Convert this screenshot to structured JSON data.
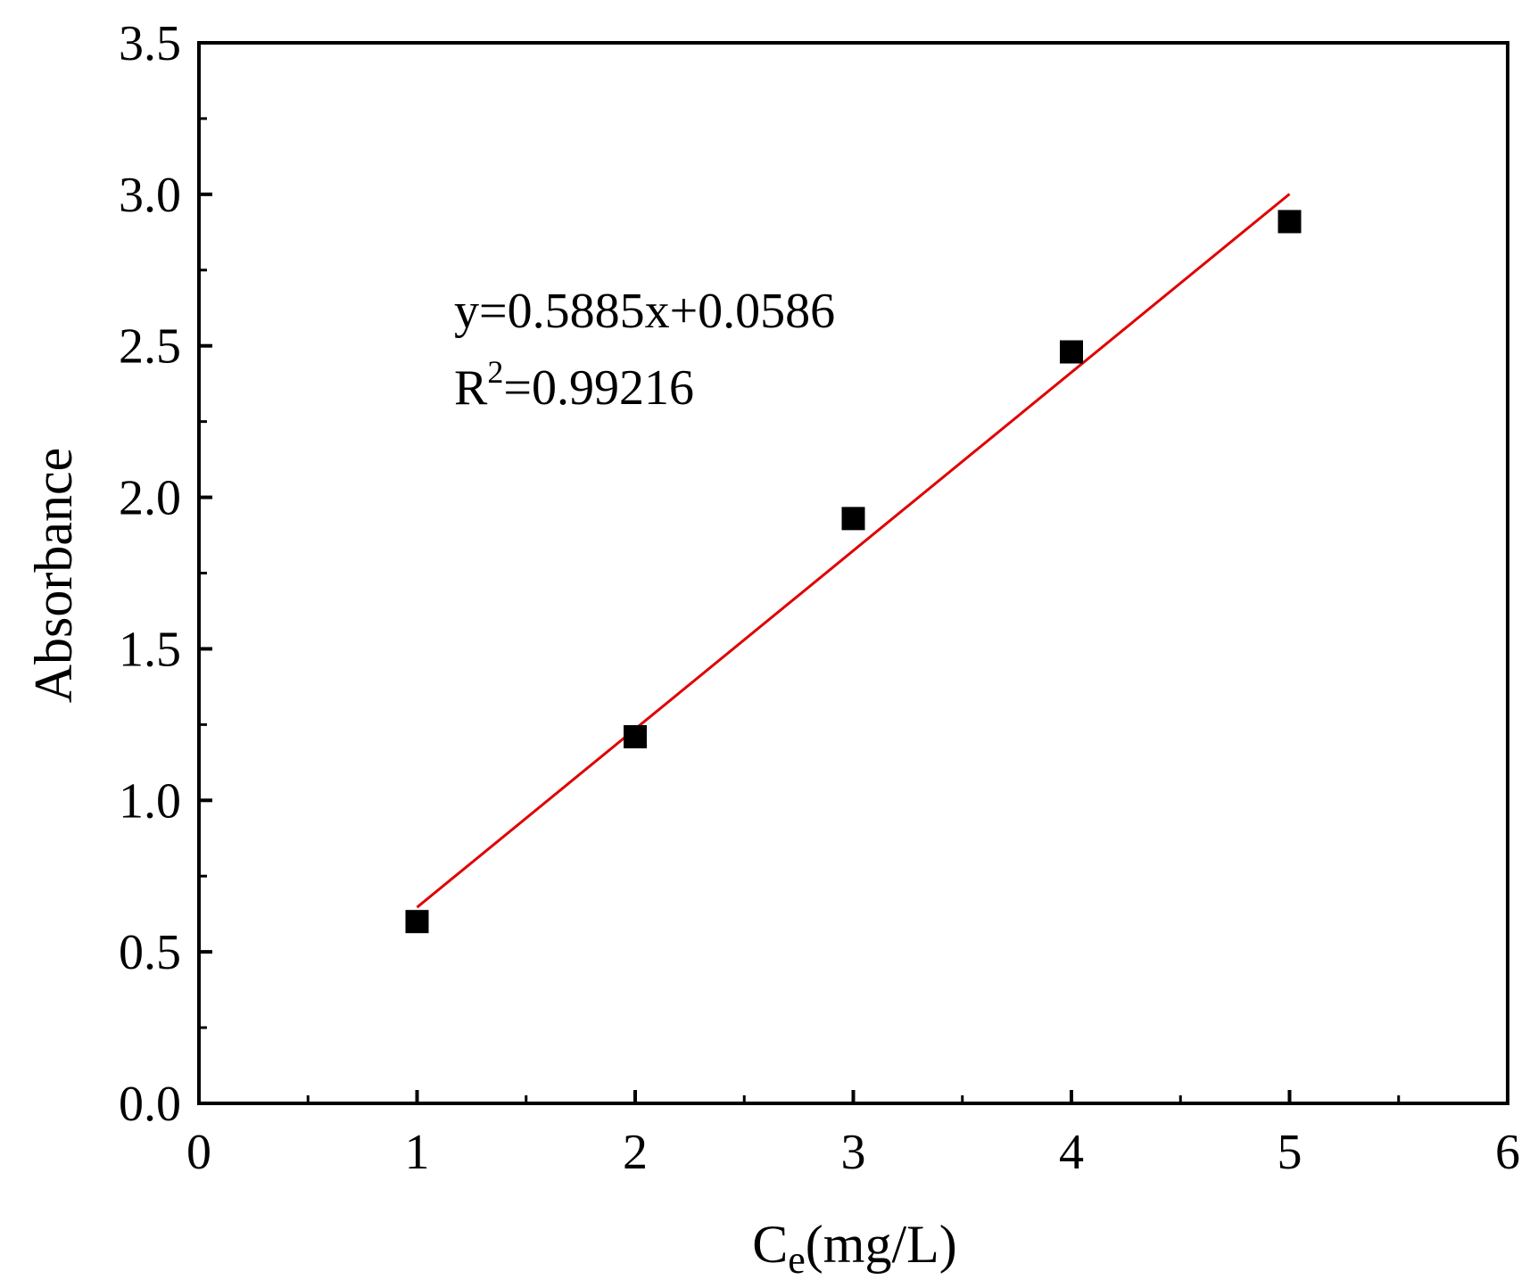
{
  "chart_data": {
    "type": "scatter",
    "xlabel_main": "C",
    "xlabel_sub": "e",
    "xlabel_unit": "(mg/L)",
    "ylabel": "Absorbance",
    "xlim": [
      0,
      6
    ],
    "ylim": [
      0,
      3.5
    ],
    "x_ticks": [
      "0",
      "1",
      "2",
      "3",
      "4",
      "5",
      "6"
    ],
    "y_ticks": [
      "0.0",
      "0.5",
      "1.0",
      "1.5",
      "2.0",
      "2.5",
      "3.0",
      "3.5"
    ],
    "x_tick_values": [
      0,
      1,
      2,
      3,
      4,
      5,
      6
    ],
    "y_tick_values": [
      0,
      0.5,
      1.0,
      1.5,
      2.0,
      2.5,
      3.0,
      3.5
    ],
    "series": [
      {
        "x": [
          1,
          2,
          3,
          4,
          5
        ],
        "y": [
          0.6,
          1.21,
          1.93,
          2.48,
          2.91
        ],
        "color": "#000000",
        "marker": "square"
      }
    ],
    "fit": {
      "slope": 0.5885,
      "intercept": 0.0586,
      "x_range": [
        1,
        5
      ],
      "color": "#e00000"
    },
    "annotations": {
      "equation": "y=0.5885x+0.0586",
      "r2_prefix": "R",
      "r2_sup": "2",
      "r2_value": "=0.99216"
    },
    "grid": false,
    "legend": "none"
  }
}
